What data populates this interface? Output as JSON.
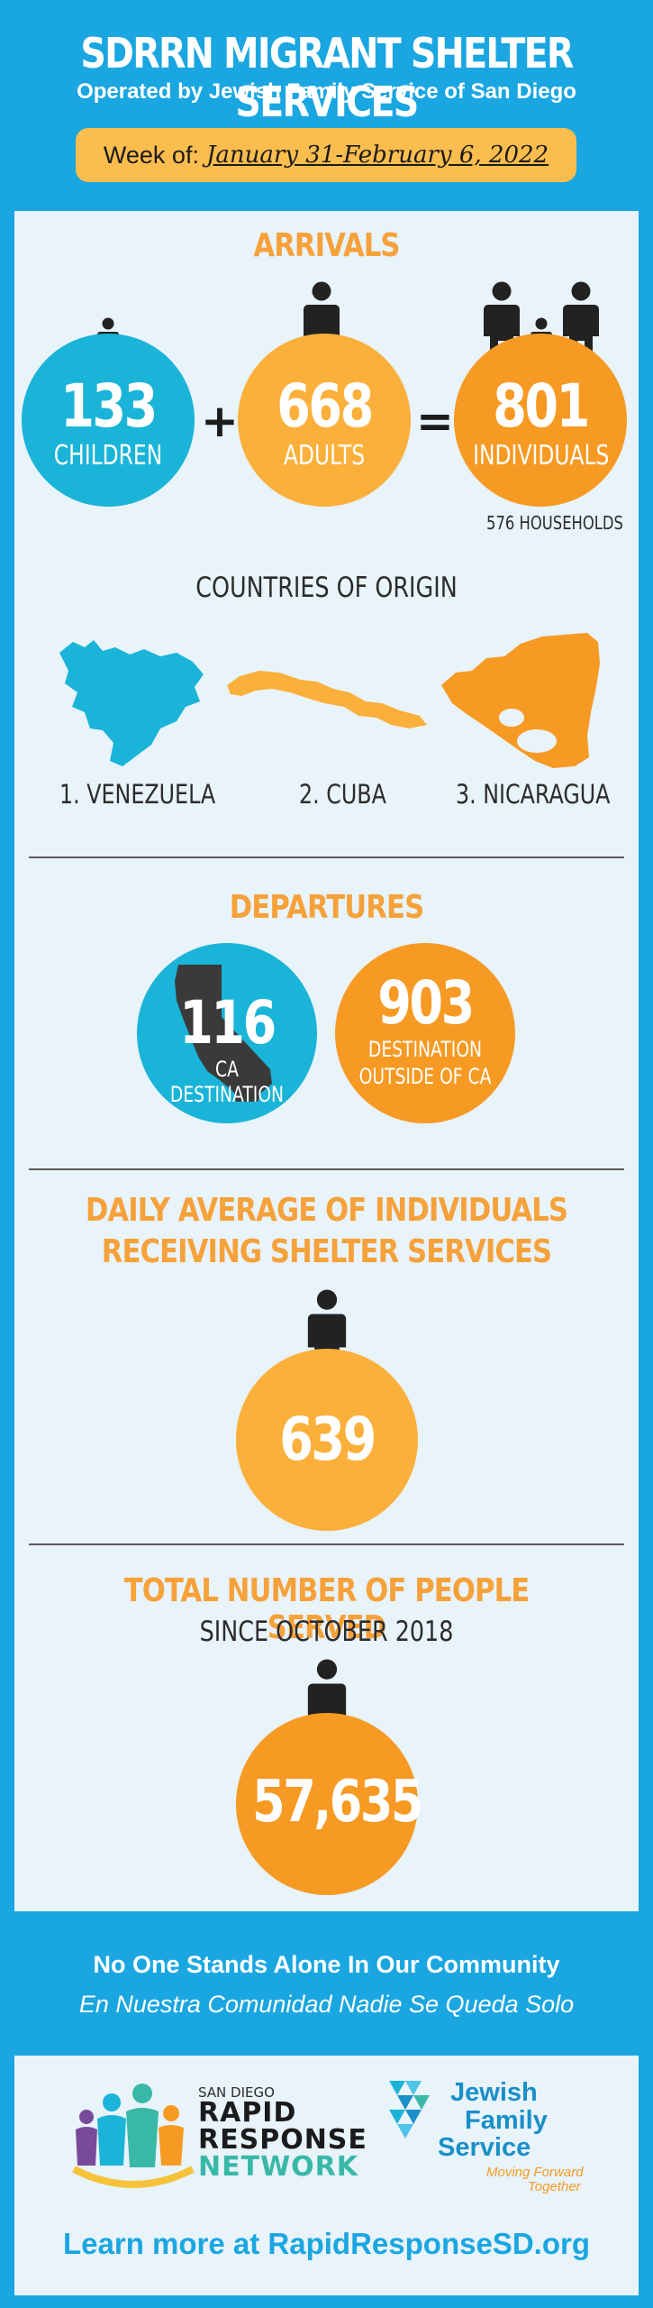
{
  "header": {
    "title": "SDRRN MIGRANT SHELTER SERVICES",
    "subtitle": "Operated by Jewish Family Service of San Diego",
    "week_prefix": "Week of:",
    "week_value": "January 31-February 6, 2022"
  },
  "arrivals": {
    "title": "ARRIVALS",
    "children": {
      "value": "133",
      "label": "CHILDREN"
    },
    "plus": "+",
    "adults": {
      "value": "668",
      "label": "ADULTS"
    },
    "equals": "=",
    "individuals": {
      "value": "801",
      "label": "INDIVIDUALS"
    },
    "households": "576 HOUSEHOLDS"
  },
  "countries": {
    "title": "COUNTRIES OF ORIGIN",
    "items": [
      "1. VENEZUELA",
      "2. CUBA",
      "3. NICARAGUA"
    ]
  },
  "departures": {
    "title": "DEPARTURES",
    "ca": {
      "value": "116",
      "label": "CA DESTINATION"
    },
    "outside": {
      "value": "903",
      "label_1": "DESTINATION",
      "label_2": "OUTSIDE OF CA"
    }
  },
  "daily": {
    "title_1": "DAILY AVERAGE OF INDIVIDUALS",
    "title_2": "RECEIVING SHELTER SERVICES",
    "value": "639"
  },
  "total": {
    "title": "TOTAL NUMBER OF PEOPLE SERVED",
    "subtitle": "SINCE OCTOBER 2018",
    "value": "57,635"
  },
  "footer": {
    "line_1": "No One Stands Alone In Our Community",
    "line_2": "En Nuestra Comunidad Nadie Se Queda Solo",
    "rrn_logo": {
      "line_1": "SAN DIEGO",
      "line_2": "RAPID",
      "line_3": "RESPONSE",
      "line_4": "NETWORK"
    },
    "jfs_logo": {
      "line_1": "Jewish",
      "line_2": "Family",
      "line_3": "Service",
      "tagline_1": "Moving Forward",
      "tagline_2": "Together"
    },
    "learn_more": "Learn more at RapidResponseSD.org"
  },
  "colors": {
    "background_blue": "#1aa6e0",
    "panel": "#e8f3fa",
    "cyan_circle": "#1ab4d8",
    "orange": "#f6a13a",
    "orange_circle": "#f79a23",
    "yellow_circle": "#fbb03b",
    "dark": "#2c2c2c"
  }
}
